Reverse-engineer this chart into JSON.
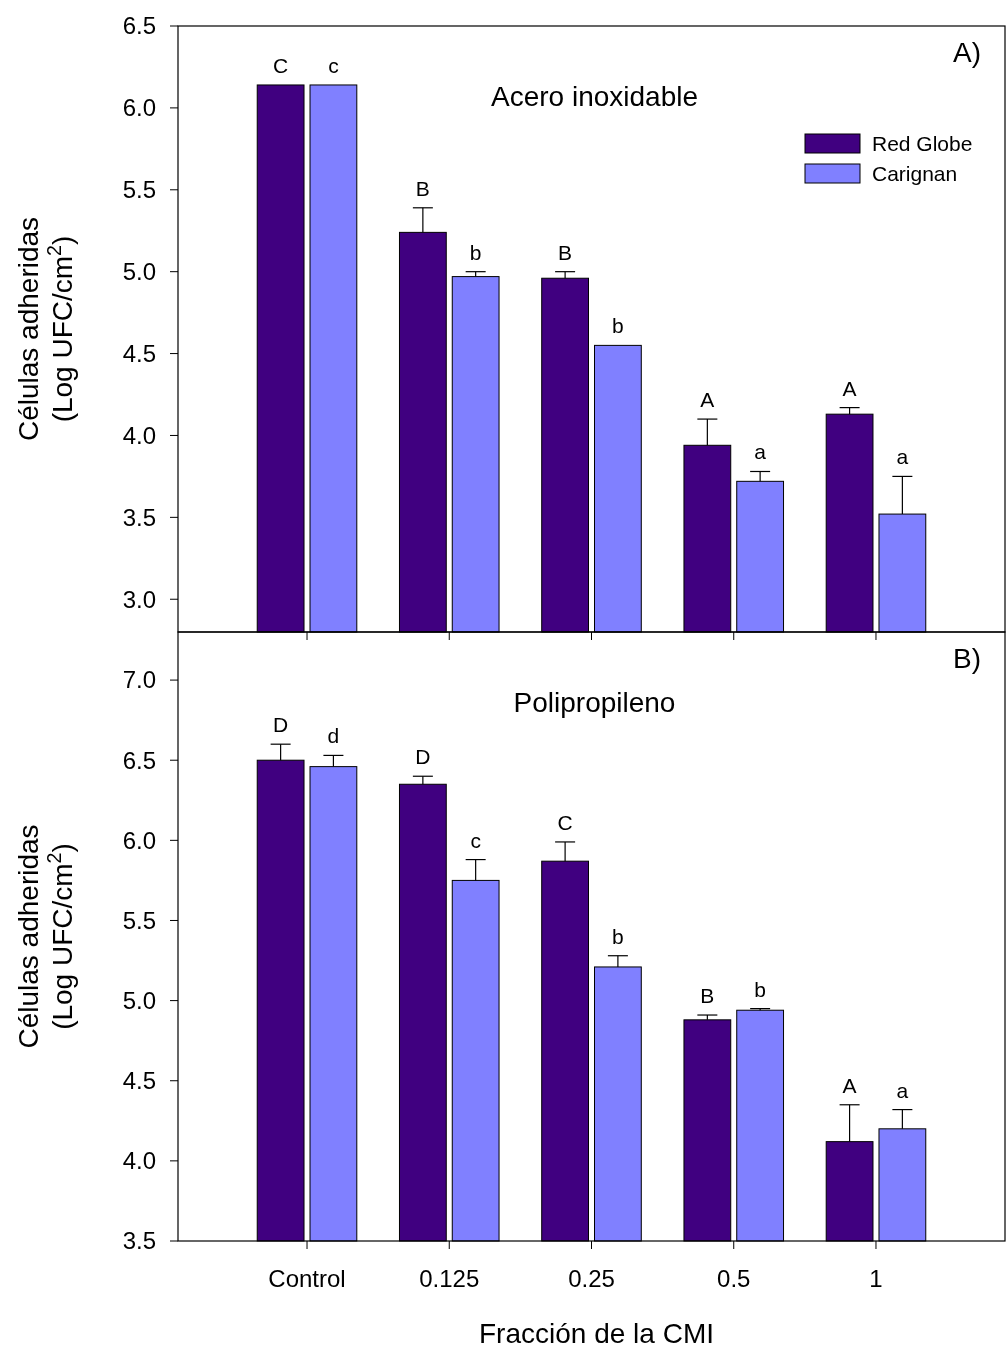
{
  "chart_data": [
    {
      "type": "bar",
      "title": "Acero inoxidable",
      "ylabel": "Células adheridas\n(Log UFC/cm$^{2}$)",
      "categories": [
        "Control",
        "0.125",
        "0.25",
        "0.5",
        "1"
      ],
      "series": [
        {
          "name": "Red Globe",
          "color": "#400080",
          "values": [
            6.14,
            5.24,
            4.96,
            3.94,
            4.13
          ],
          "errors": [
            null,
            [
              5.24,
              5.39
            ],
            [
              4.96,
              5.0
            ],
            [
              3.94,
              4.1
            ],
            [
              4.13,
              4.17
            ]
          ]
        },
        {
          "name": "Carignan",
          "color": "#8080ff",
          "values": [
            6.14,
            4.97,
            4.55,
            3.72,
            3.52
          ],
          "errors": [
            null,
            [
              4.97,
              5.0
            ],
            null,
            [
              3.72,
              3.78
            ],
            [
              3.52,
              3.75
            ]
          ]
        }
      ],
      "ylim": [
        2.8,
        6.5
      ],
      "yticks": [
        {
          "value": 3,
          "label": "3.0"
        },
        {
          "value": 3.5,
          "label": "3.5"
        },
        {
          "value": 4,
          "label": "4.0"
        },
        {
          "value": 4.5,
          "label": "4.5"
        },
        {
          "value": 5,
          "label": "5.0"
        },
        {
          "value": 5.5,
          "label": "5.5"
        },
        {
          "value": 6,
          "label": "6.0"
        },
        {
          "value": 6.5,
          "label": "6.5"
        }
      ],
      "tick_labels": "y",
      "legend": "top right",
      "grid": false,
      "annotations": [
        "A)",
        {
          "text": "C",
          "x": "Control",
          "y": 6.14
        },
        {
          "text": "c",
          "x": "Control",
          "y": 6.14
        },
        {
          "text": "B",
          "x": "0.125",
          "y": 5.24
        },
        {
          "text": "b",
          "x": "0.125",
          "y": 4.97
        },
        {
          "text": "B",
          "x": "0.25",
          "y": 4.96
        },
        {
          "text": "b",
          "x": "0.25",
          "y": 4.55
        },
        {
          "text": "A",
          "x": "0.5",
          "y": 3.94
        },
        {
          "text": "a",
          "x": "0.5",
          "y": 3.72
        },
        {
          "text": "A",
          "x": "1",
          "y": 4.13
        },
        {
          "text": "a",
          "x": "1",
          "y": 3.52
        }
      ]
    },
    {
      "type": "bar",
      "title": "Polipropileno",
      "ylabel": "Células adheridas\n(Log UFC/cm$^{2}$)",
      "xlabel": "Fracción de la CMI",
      "categories": [
        "Control",
        "0.125",
        "0.25",
        "0.5",
        "1"
      ],
      "series": [
        {
          "color": "#400080",
          "values": [
            6.5,
            6.35,
            5.87,
            4.88,
            4.12
          ],
          "errors": [
            [
              6.5,
              6.6
            ],
            [
              6.35,
              6.4
            ],
            [
              5.87,
              5.99
            ],
            [
              4.88,
              4.91
            ],
            [
              4.12,
              4.35
            ]
          ]
        },
        {
          "color": "#8080ff",
          "values": [
            6.46,
            5.75,
            5.21,
            4.94,
            4.2
          ],
          "errors": [
            [
              6.46,
              6.53
            ],
            [
              5.75,
              5.88
            ],
            [
              5.21,
              5.28
            ],
            [
              4.94,
              4.95
            ],
            [
              4.2,
              4.32
            ]
          ]
        }
      ],
      "ylim": [
        3.5,
        7.3
      ],
      "yticks": [
        {
          "value": 3.5,
          "label": "3.5"
        },
        {
          "value": 4,
          "label": "4.0"
        },
        {
          "value": 4.5,
          "label": "4.5"
        },
        {
          "value": 5,
          "label": "5.0"
        },
        {
          "value": 5.5,
          "label": "5.5"
        },
        {
          "value": 6,
          "label": "6.0"
        },
        {
          "value": 6.5,
          "label": "6.5"
        },
        {
          "value": 7,
          "label": "7.0"
        }
      ],
      "legend": false,
      "grid": false,
      "annotations": [
        "B)",
        {
          "text": "D",
          "x": "Control",
          "y": 6.5
        },
        {
          "text": "d",
          "x": "Control",
          "y": 6.46
        },
        {
          "text": "D",
          "x": "0.125",
          "y": 6.35
        },
        {
          "text": "c",
          "x": "0.125",
          "y": 5.75
        },
        {
          "text": "C",
          "x": "0.25",
          "y": 5.87
        },
        {
          "text": "b",
          "x": "0.25",
          "y": 5.21
        },
        {
          "text": "B",
          "x": "0.5",
          "y": 4.88
        },
        {
          "text": "b",
          "x": "0.5",
          "y": 4.94
        },
        {
          "text": "A",
          "x": "1",
          "y": 4.12
        },
        {
          "text": "a",
          "x": "1",
          "y": 4.2
        }
      ]
    }
  ]
}
